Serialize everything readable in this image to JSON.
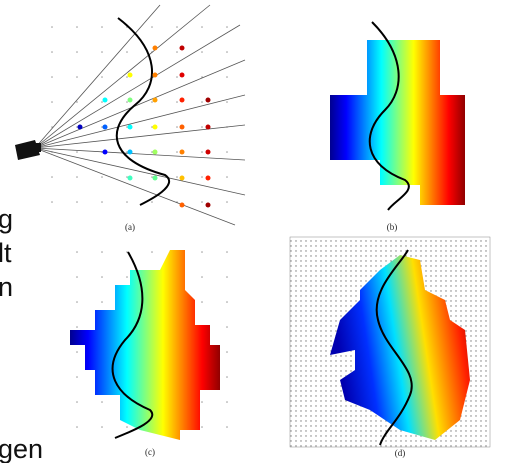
{
  "figure": {
    "panels": [
      {
        "label": "(a)"
      },
      {
        "label": "(b)"
      },
      {
        "label": "(c)"
      },
      {
        "label": "(d)"
      }
    ]
  },
  "side_text": [
    "g",
    "lt",
    "n",
    "gen"
  ]
}
